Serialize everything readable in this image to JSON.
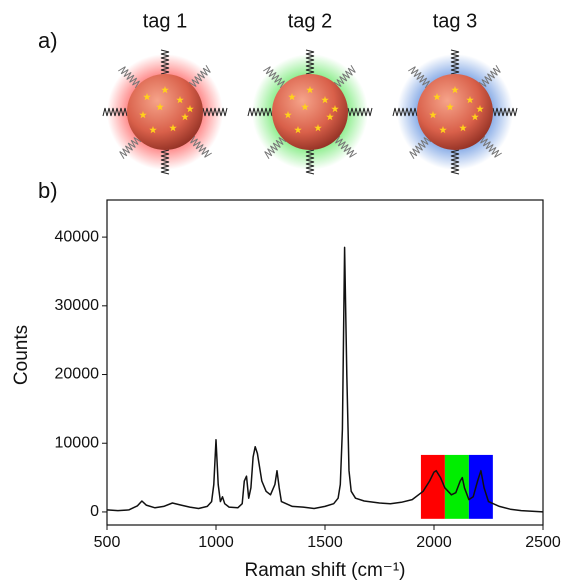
{
  "panel_a": {
    "label": "a)",
    "tags": [
      {
        "text": "tag 1",
        "color": "#ff1a1a"
      },
      {
        "text": "tag 2",
        "color": "#22dd22"
      },
      {
        "text": "tag 3",
        "color": "#1a5fd0"
      }
    ]
  },
  "chart_data": {
    "type": "line",
    "panel_label": "b)",
    "xlabel": "Raman shift (cm⁻¹)",
    "ylabel": "Counts",
    "x": [
      500,
      550,
      600,
      640,
      660,
      680,
      720,
      760,
      800,
      840,
      880,
      920,
      960,
      980,
      990,
      1000,
      1010,
      1020,
      1030,
      1040,
      1060,
      1100,
      1120,
      1130,
      1140,
      1150,
      1160,
      1170,
      1180,
      1190,
      1200,
      1210,
      1230,
      1250,
      1270,
      1280,
      1290,
      1300,
      1350,
      1400,
      1450,
      1500,
      1540,
      1560,
      1570,
      1580,
      1590,
      1600,
      1610,
      1620,
      1640,
      1680,
      1750,
      1800,
      1850,
      1900,
      1950,
      1980,
      2000,
      2010,
      2030,
      2050,
      2080,
      2100,
      2120,
      2130,
      2140,
      2160,
      2180,
      2200,
      2215,
      2230,
      2250,
      2300,
      2350,
      2400,
      2450,
      2500
    ],
    "series": [
      {
        "color": "#111111",
        "values": [
          300,
          200,
          300,
          900,
          1600,
          1000,
          600,
          800,
          1300,
          1000,
          700,
          500,
          800,
          1500,
          4000,
          10500,
          4000,
          1500,
          2200,
          1200,
          700,
          600,
          1200,
          4500,
          5200,
          2000,
          3500,
          8000,
          9500,
          8500,
          6500,
          4500,
          3000,
          2500,
          4000,
          6000,
          3500,
          1500,
          800,
          700,
          500,
          800,
          1200,
          2000,
          4000,
          12000,
          38500,
          20000,
          6000,
          3000,
          2000,
          1600,
          1300,
          1200,
          1400,
          1800,
          3000,
          4500,
          5800,
          6000,
          5000,
          3500,
          2500,
          2800,
          4500,
          5000,
          3500,
          1800,
          2200,
          4500,
          6000,
          3500,
          1500,
          800,
          400,
          200,
          100,
          0
        ]
      }
    ],
    "bands": [
      {
        "x": [
          1940,
          2050
        ],
        "y": [
          -1000,
          8300
        ],
        "color": "#ff0000"
      },
      {
        "x": [
          2050,
          2160
        ],
        "y": [
          -1000,
          8300
        ],
        "color": "#00ee00"
      },
      {
        "x": [
          2160,
          2270
        ],
        "y": [
          -1000,
          8300
        ],
        "color": "#0000ff"
      }
    ],
    "xlim": [
      500,
      2500
    ],
    "ylim": [
      -1900,
      45400
    ],
    "xticks": [
      500,
      1000,
      1500,
      2000,
      2500
    ],
    "yticks": [
      0,
      10000,
      20000,
      30000,
      40000
    ]
  }
}
